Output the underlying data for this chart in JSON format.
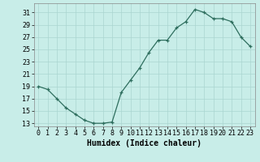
{
  "x": [
    0,
    1,
    2,
    3,
    4,
    5,
    6,
    7,
    8,
    9,
    10,
    11,
    12,
    13,
    14,
    15,
    16,
    17,
    18,
    19,
    20,
    21,
    22,
    23
  ],
  "y": [
    19,
    18.5,
    17,
    15.5,
    14.5,
    13.5,
    13,
    13,
    13.2,
    18,
    20,
    22,
    24.5,
    26.5,
    26.5,
    28.5,
    29.5,
    31.5,
    31,
    30,
    30,
    29.5,
    27,
    25.5
  ],
  "line_color": "#2e6e5e",
  "marker": "+",
  "bg_color": "#c8ede8",
  "grid_color": "#aad6d0",
  "xlabel": "Humidex (Indice chaleur)",
  "xlabel_fontsize": 7,
  "tick_fontsize": 6,
  "xlim": [
    -0.5,
    23.5
  ],
  "ylim": [
    12.5,
    32.5
  ],
  "yticks": [
    13,
    15,
    17,
    19,
    21,
    23,
    25,
    27,
    29,
    31
  ],
  "xticks": [
    0,
    1,
    2,
    3,
    4,
    5,
    6,
    7,
    8,
    9,
    10,
    11,
    12,
    13,
    14,
    15,
    16,
    17,
    18,
    19,
    20,
    21,
    22,
    23
  ]
}
